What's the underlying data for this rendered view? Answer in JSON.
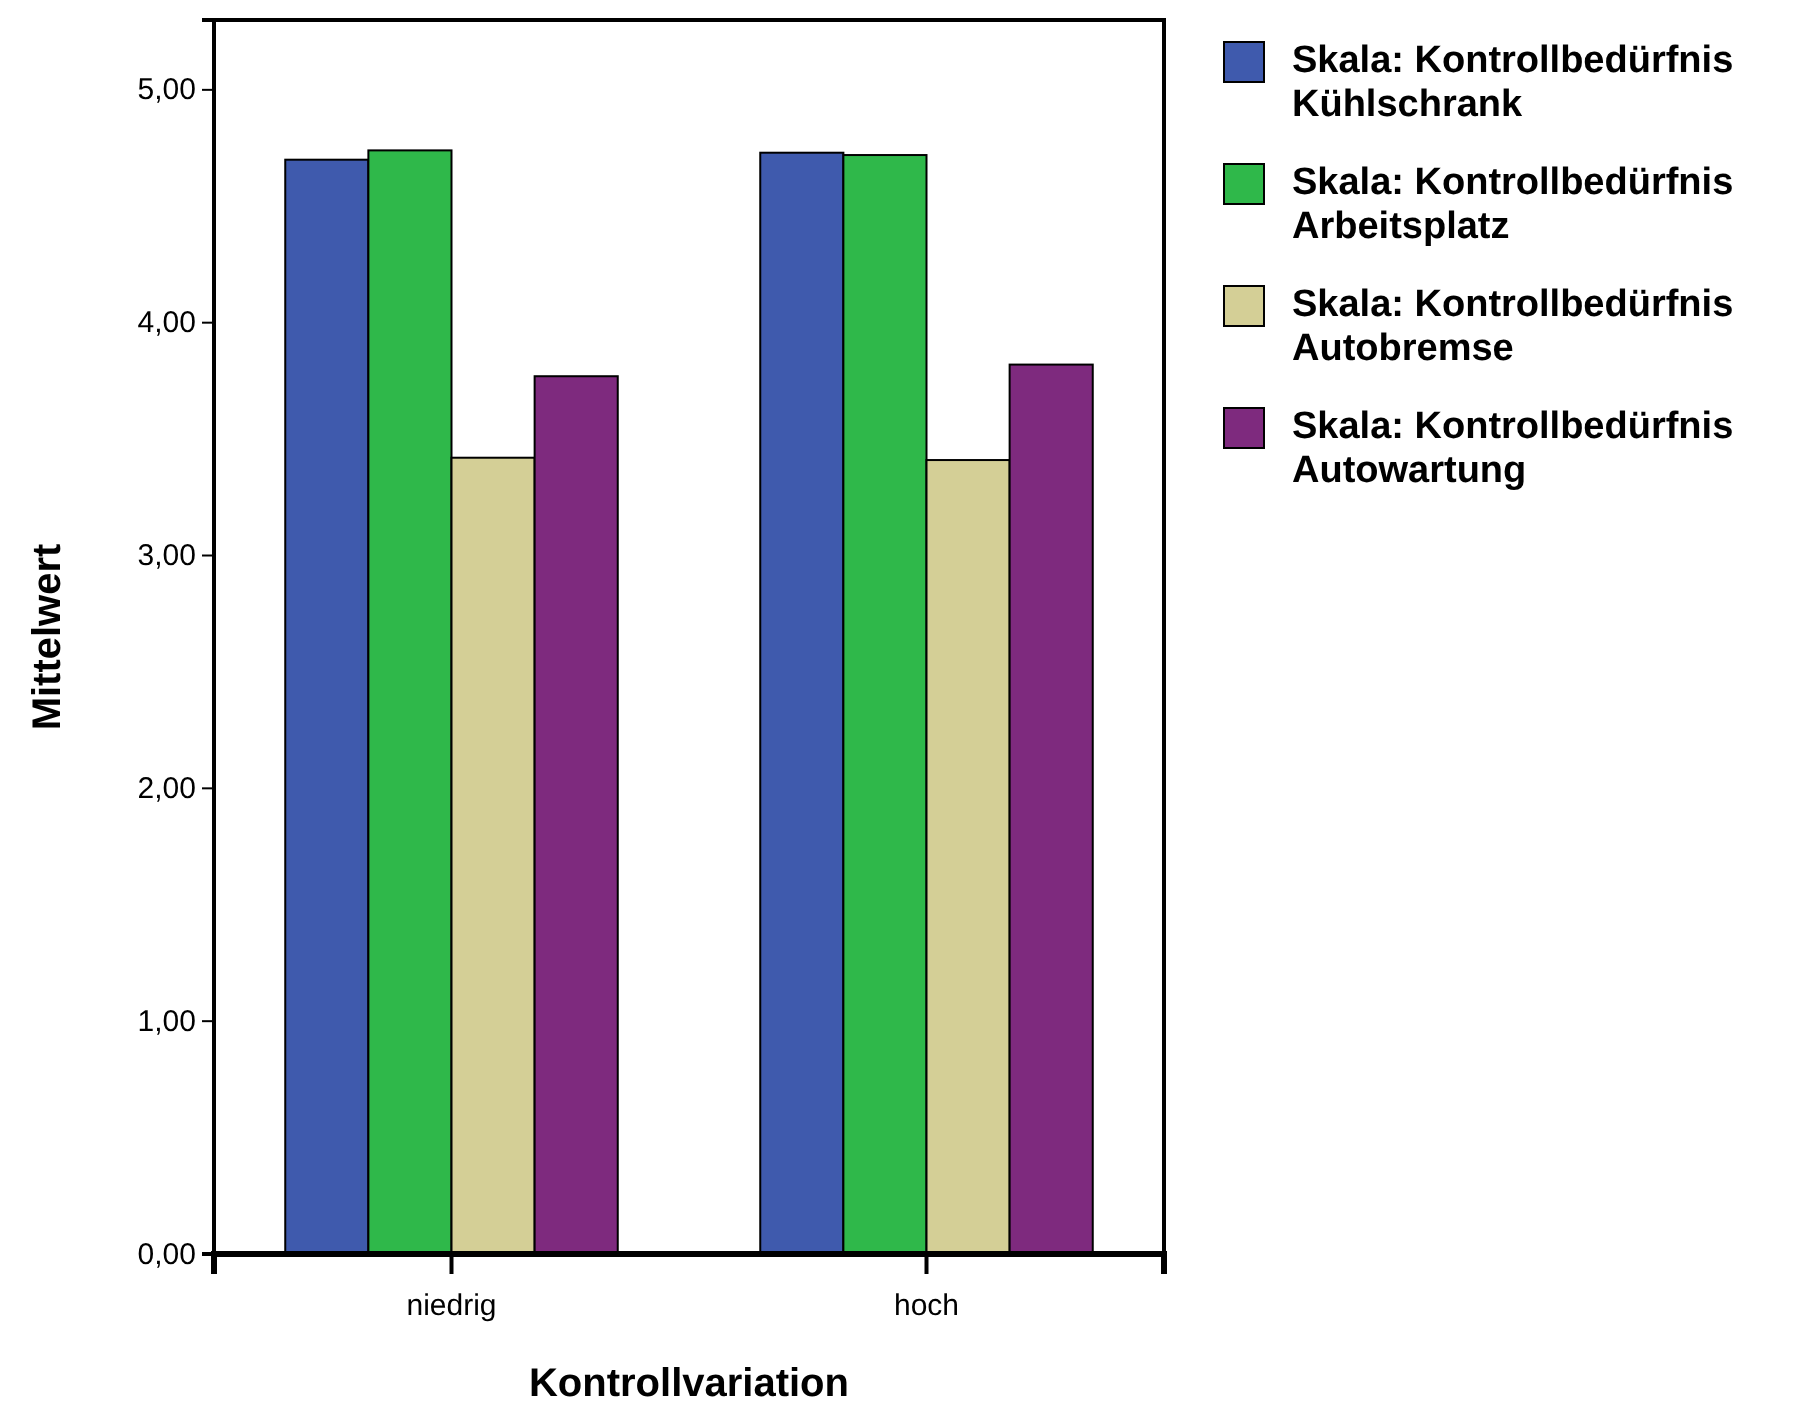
{
  "chart_data": {
    "type": "bar",
    "xlabel": "Kontrollvariation",
    "ylabel": "Mittelwert",
    "categories": [
      "niedrig",
      "hoch"
    ],
    "series": [
      {
        "name": "Skala: Kontrollbedürfnis Kühlschrank",
        "color": "#3f5aad",
        "values": [
          4.7,
          4.73
        ]
      },
      {
        "name": "Skala: Kontrollbedürfnis Arbeitsplatz",
        "color": "#2fb84a",
        "values": [
          4.74,
          4.72
        ]
      },
      {
        "name": "Skala: Kontrollbedürfnis Autobremse",
        "color": "#d4cf96",
        "values": [
          3.42,
          3.41
        ]
      },
      {
        "name": "Skala: Kontrollbedürfnis Autowartung",
        "color": "#7e2a7e",
        "values": [
          3.77,
          3.82
        ]
      }
    ],
    "ylim": [
      0,
      5.3
    ],
    "yticks": [
      {
        "value": 0,
        "label": "0,00"
      },
      {
        "value": 1,
        "label": "1,00"
      },
      {
        "value": 2,
        "label": "2,00"
      },
      {
        "value": 3,
        "label": "3,00"
      },
      {
        "value": 4,
        "label": "4,00"
      },
      {
        "value": 5,
        "label": "5,00"
      }
    ],
    "grid": false,
    "legend": "right"
  }
}
